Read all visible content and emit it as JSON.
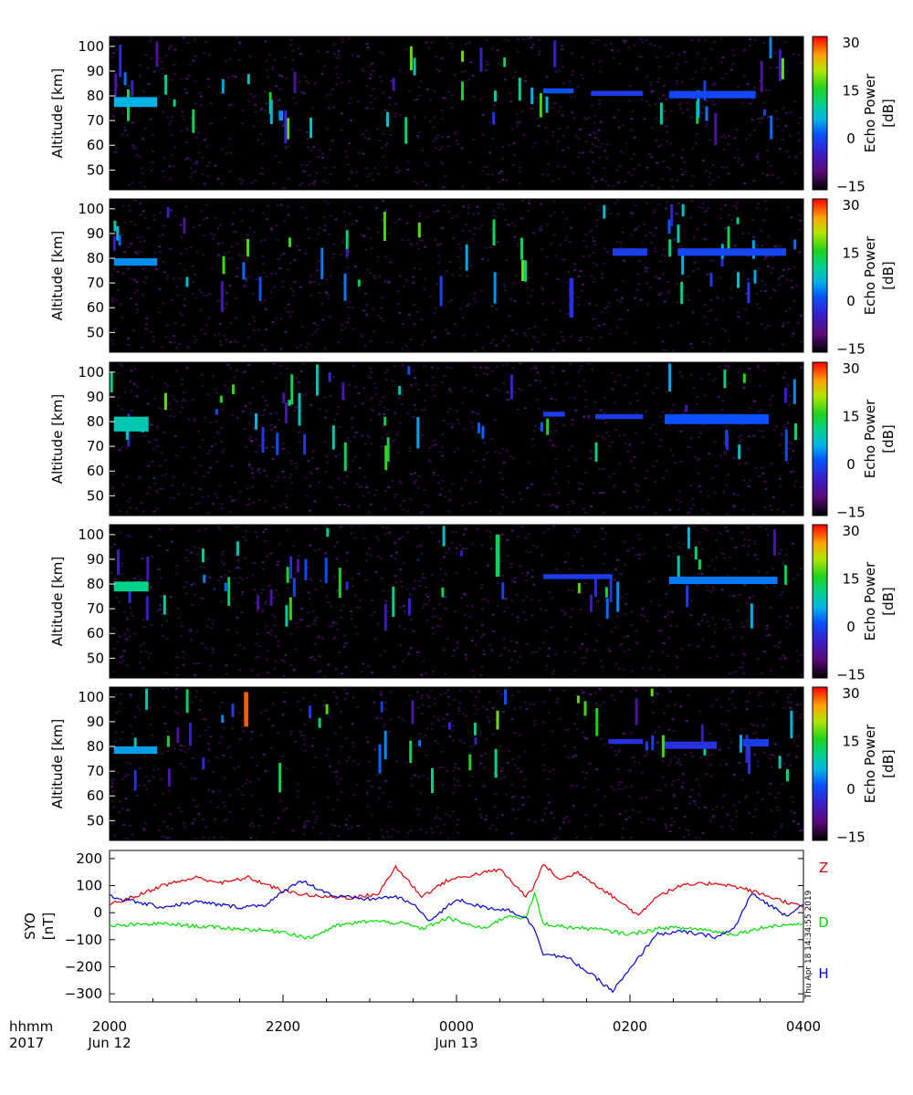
{
  "chart_data": [
    {
      "type": "heatmap",
      "panel": 1,
      "ylabel": "Altitude [km]",
      "yticks": [
        50,
        60,
        70,
        80,
        90,
        100
      ],
      "ylim": [
        42,
        104
      ],
      "colorbar": {
        "label": "Echo Power\n[dB]",
        "ticks": [
          -15,
          0,
          15,
          30
        ],
        "range": [
          -16,
          32
        ]
      },
      "features": [
        {
          "t0": 20.05,
          "t1": 20.55,
          "alt0": 75.5,
          "alt1": 79.5,
          "db": 5
        },
        {
          "t0": 21.95,
          "t1": 22.0,
          "alt0": 70,
          "alt1": 74,
          "db": 3
        },
        {
          "t0": 1.0,
          "t1": 1.35,
          "alt0": 81,
          "alt1": 83,
          "db": 0
        },
        {
          "t0": 1.55,
          "t1": 2.15,
          "alt0": 80,
          "alt1": 82,
          "db": -2
        },
        {
          "t0": 2.45,
          "t1": 3.45,
          "alt0": 79,
          "alt1": 82,
          "db": -1
        }
      ]
    },
    {
      "type": "heatmap",
      "panel": 2,
      "ylabel": "Altitude [km]",
      "yticks": [
        50,
        60,
        70,
        80,
        90,
        100
      ],
      "ylim": [
        42,
        104
      ],
      "colorbar": {
        "label": "Echo Power\n[dB]",
        "ticks": [
          -15,
          0,
          15,
          30
        ],
        "range": [
          -16,
          32
        ]
      },
      "features": [
        {
          "t0": 20.05,
          "t1": 20.55,
          "alt0": 77,
          "alt1": 80,
          "db": 3
        },
        {
          "t0": 1.3,
          "t1": 1.35,
          "alt0": 56,
          "alt1": 72,
          "db": -3
        },
        {
          "t0": 1.8,
          "t1": 2.2,
          "alt0": 81,
          "alt1": 84,
          "db": -2
        },
        {
          "t0": 2.55,
          "t1": 3.8,
          "alt0": 81,
          "alt1": 84,
          "db": -1
        }
      ]
    },
    {
      "type": "heatmap",
      "panel": 3,
      "ylabel": "Altitude [km]",
      "yticks": [
        50,
        60,
        70,
        80,
        90,
        100
      ],
      "ylim": [
        42,
        104
      ],
      "colorbar": {
        "label": "Echo Power\n[dB]",
        "ticks": [
          -15,
          0,
          15,
          30
        ],
        "range": [
          -16,
          32
        ]
      },
      "features": [
        {
          "t0": 20.05,
          "t1": 20.45,
          "alt0": 76,
          "alt1": 82,
          "db": 8
        },
        {
          "t0": 1.0,
          "t1": 1.25,
          "alt0": 82,
          "alt1": 84,
          "db": -2
        },
        {
          "t0": 1.6,
          "t1": 2.15,
          "alt0": 81,
          "alt1": 83,
          "db": -2
        },
        {
          "t0": 2.4,
          "t1": 3.6,
          "alt0": 79,
          "alt1": 83,
          "db": 0
        }
      ]
    },
    {
      "type": "heatmap",
      "panel": 4,
      "ylabel": "Altitude [km]",
      "yticks": [
        50,
        60,
        70,
        80,
        90,
        100
      ],
      "ylim": [
        42,
        104
      ],
      "colorbar": {
        "label": "Echo Power\n[dB]",
        "ticks": [
          -15,
          0,
          15,
          30
        ],
        "range": [
          -16,
          32
        ]
      },
      "features": [
        {
          "t0": 20.05,
          "t1": 20.45,
          "alt0": 77,
          "alt1": 81,
          "db": 10
        },
        {
          "t0": 0.45,
          "t1": 0.5,
          "alt0": 83,
          "alt1": 100,
          "db": 12
        },
        {
          "t0": 1.0,
          "t1": 1.8,
          "alt0": 82,
          "alt1": 84,
          "db": -2
        },
        {
          "t0": 2.45,
          "t1": 3.7,
          "alt0": 80,
          "alt1": 83,
          "db": 2
        }
      ]
    },
    {
      "type": "heatmap",
      "panel": 5,
      "ylabel": "Altitude [km]",
      "yticks": [
        50,
        60,
        70,
        80,
        90,
        100
      ],
      "ylim": [
        42,
        104
      ],
      "colorbar": {
        "label": "Echo Power\n[dB]",
        "ticks": [
          -15,
          0,
          15,
          30
        ],
        "range": [
          -16,
          32
        ]
      },
      "features": [
        {
          "t0": 20.05,
          "t1": 20.55,
          "alt0": 77,
          "alt1": 80,
          "db": 4
        },
        {
          "t0": 21.55,
          "t1": 21.6,
          "alt0": 88,
          "alt1": 102,
          "db": 28
        },
        {
          "t0": 1.75,
          "t1": 2.15,
          "alt0": 81,
          "alt1": 83,
          "db": -3
        },
        {
          "t0": 2.4,
          "t1": 3.0,
          "alt0": 79,
          "alt1": 82,
          "db": -3
        },
        {
          "t0": 3.3,
          "t1": 3.6,
          "alt0": 80,
          "alt1": 83,
          "db": -2
        }
      ]
    },
    {
      "type": "line",
      "ylabel": "SYO\n[nT]",
      "yticks": [
        200,
        100,
        0,
        -100,
        -200,
        -300
      ],
      "ylim": [
        -330,
        230
      ],
      "series": [
        {
          "name": "Z",
          "color": "#dd0000",
          "x": [
            20.0,
            20.3,
            20.6,
            21.0,
            21.3,
            21.6,
            22.0,
            22.4,
            22.8,
            23.1,
            23.3,
            23.6,
            23.9,
            0.2,
            0.5,
            0.8,
            0.9,
            1.0,
            1.2,
            1.4,
            1.8,
            2.1,
            2.3,
            2.6,
            3.0,
            3.3,
            3.6,
            4.0
          ],
          "values": [
            30,
            60,
            100,
            130,
            110,
            130,
            80,
            60,
            55,
            70,
            170,
            60,
            120,
            140,
            160,
            60,
            100,
            180,
            120,
            150,
            60,
            -10,
            60,
            100,
            110,
            90,
            60,
            20
          ]
        },
        {
          "name": "D",
          "color": "#00dd00",
          "x": [
            20.0,
            20.3,
            20.6,
            21.0,
            21.5,
            22.0,
            22.3,
            22.6,
            23.0,
            23.4,
            23.6,
            23.9,
            0.3,
            0.6,
            0.8,
            0.9,
            1.0,
            1.3,
            1.6,
            2.0,
            2.4,
            2.8,
            3.2,
            3.6,
            4.0
          ],
          "values": [
            -50,
            -45,
            -40,
            -50,
            -60,
            -70,
            -95,
            -50,
            -30,
            -40,
            -60,
            -20,
            -60,
            -10,
            -20,
            70,
            -40,
            -55,
            -60,
            -80,
            -55,
            -60,
            -80,
            -50,
            -40
          ]
        },
        {
          "name": "H",
          "color": "#0000cc",
          "x": [
            20.0,
            20.3,
            20.6,
            21.0,
            21.5,
            21.8,
            22.2,
            22.6,
            23.0,
            23.3,
            23.5,
            23.7,
            0.0,
            0.3,
            0.6,
            0.8,
            0.9,
            1.0,
            1.3,
            1.6,
            1.8,
            2.0,
            2.3,
            2.6,
            3.0,
            3.2,
            3.4,
            3.6,
            3.8,
            4.0
          ],
          "values": [
            60,
            40,
            20,
            40,
            20,
            30,
            120,
            60,
            50,
            60,
            30,
            -30,
            50,
            20,
            10,
            -20,
            -60,
            -150,
            -170,
            -240,
            -290,
            -210,
            -80,
            -70,
            -90,
            -60,
            70,
            30,
            -10,
            30
          ]
        }
      ]
    }
  ],
  "x_axis": {
    "row_titles": [
      "hhmm",
      "2017"
    ],
    "tick_labels": [
      "2000",
      "2200",
      "0000",
      "0200",
      "0400"
    ],
    "date_labels": [
      "Jun 12",
      "Jun 13"
    ],
    "range_hours": [
      20,
      28
    ]
  },
  "timestamp": "Thu Apr 18 14:34:55 2019"
}
